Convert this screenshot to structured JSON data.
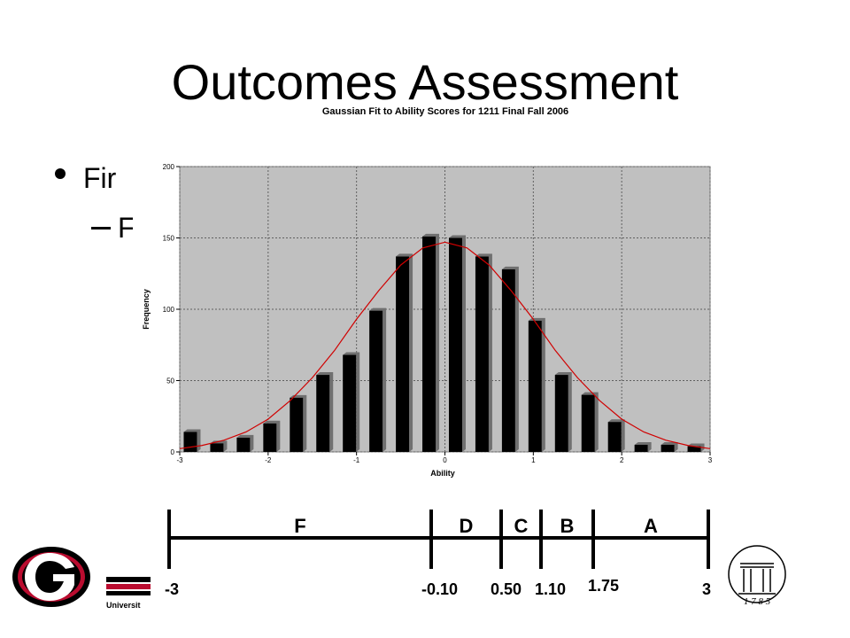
{
  "slide_title": "Outcomes Assessment",
  "bullet": "Fir",
  "sub_bullet": "F",
  "chart_data": {
    "type": "histogram",
    "title": "Gaussian Fit to Ability Scores for 1211 Final Fall 2006",
    "x_label": "Ability",
    "y_label": "Frequency",
    "bins": [
      -3,
      -2.7,
      -2.4,
      -2.1,
      -1.8,
      -1.5,
      -1.2,
      -0.9,
      -0.6,
      -0.3,
      0,
      0.3,
      0.6,
      0.9,
      1.2,
      1.5,
      1.8,
      2.1,
      2.4,
      2.7,
      3
    ],
    "values": [
      14,
      6,
      10,
      20,
      38,
      54,
      68,
      99,
      137,
      151,
      150,
      137,
      128,
      92,
      54,
      40,
      21,
      5,
      5,
      4
    ],
    "color": "#000000",
    "fit": {
      "color": "#d00000",
      "x": [
        -3,
        -2.75,
        -2.5,
        -2.25,
        -2,
        -1.75,
        -1.5,
        -1.25,
        -1,
        -0.75,
        -0.5,
        -0.25,
        0,
        0.25,
        0.5,
        0.75,
        1,
        1.25,
        1.5,
        1.75,
        2,
        2.25,
        2.5,
        2.75,
        3
      ],
      "values": [
        2.3,
        4.5,
        8.2,
        14,
        23,
        36,
        52,
        71,
        93,
        113,
        131,
        143,
        147,
        143,
        131,
        113,
        93,
        71,
        52,
        36,
        23,
        14,
        8.2,
        4.5,
        2.3
      ]
    },
    "xlim": [
      -3,
      3
    ],
    "ylim": [
      0,
      200
    ],
    "xticks": [
      -3,
      -2,
      -1,
      0,
      1,
      2,
      3
    ],
    "yticks": [
      0,
      50,
      100,
      150,
      200
    ],
    "grid": true
  },
  "grade_scale": {
    "grades": [
      "F",
      "D",
      "C",
      "B",
      "A"
    ],
    "boundaries": [
      "-3",
      "-0.10",
      "0.50",
      "1.10",
      "1.75",
      "3"
    ]
  },
  "footer": {
    "university": "Universit",
    "year": "1 7 8 5"
  }
}
